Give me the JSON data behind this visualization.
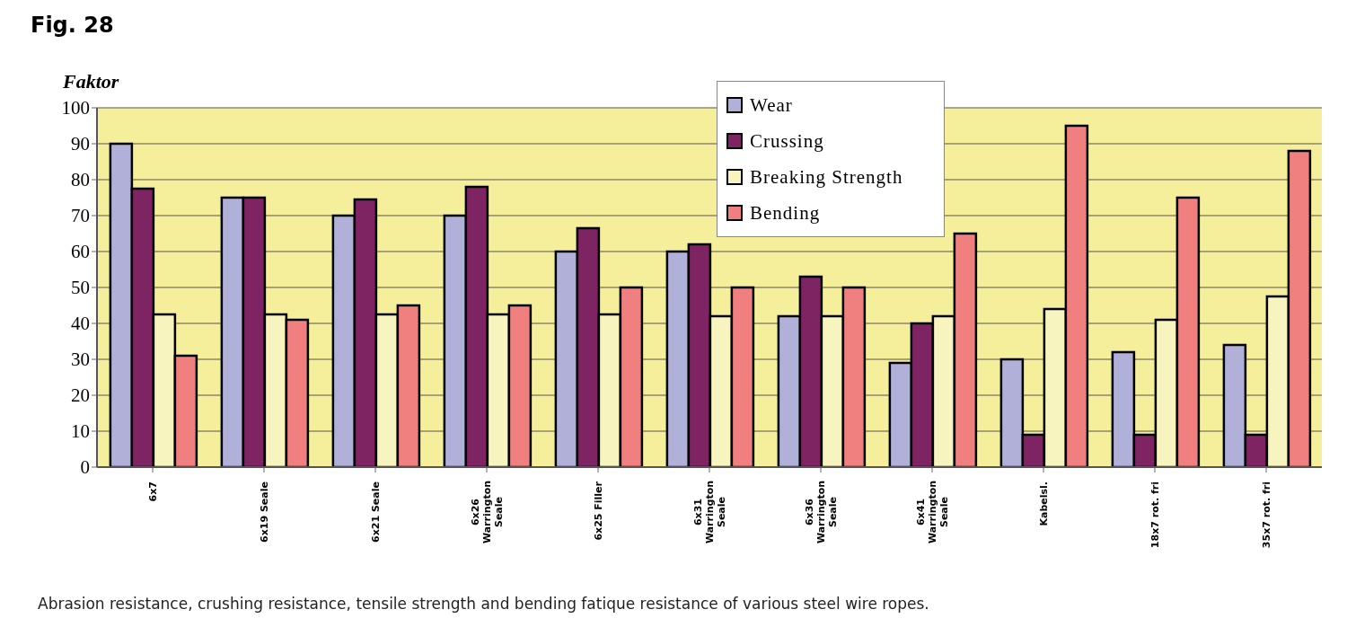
{
  "chart_data": {
    "type": "bar",
    "title": "Fig. 28",
    "ylabel": "Faktor",
    "categories": [
      "6x7",
      "6x19 Seale",
      "6x21 Seale",
      "6x26\nWarrington\nSeale",
      "6x25 Filler",
      "6x31\nWarrington\nSeale",
      "6x36\nWarrington\nSeale",
      "6x41\nWarrington\nSeale",
      "Kabelsl.",
      "18x7 rot. fri",
      "35x7 rot. fri"
    ],
    "series": [
      {
        "name": "Wear",
        "color": "#b0b0d8",
        "values": [
          90,
          75,
          70,
          70,
          60,
          60,
          42,
          29,
          30,
          32,
          34
        ]
      },
      {
        "name": "Crussing",
        "color": "#7f2463",
        "values": [
          77.5,
          75,
          74.5,
          78,
          66.5,
          62,
          53,
          40,
          9,
          9,
          9
        ]
      },
      {
        "name": "Breaking Strength",
        "color": "#f8f4c0",
        "values": [
          42.5,
          42.5,
          42.5,
          42.5,
          42.5,
          42,
          42,
          42,
          44,
          41,
          47.5
        ]
      },
      {
        "name": "Bending",
        "color": "#f08080",
        "values": [
          31,
          41,
          45,
          45,
          50,
          50,
          50,
          65,
          95,
          75,
          88
        ]
      }
    ],
    "ylim": [
      0,
      100
    ],
    "yticks": [
      0,
      10,
      20,
      30,
      40,
      50,
      60,
      70,
      80,
      90,
      100
    ],
    "grid": "y",
    "legend": "top",
    "annotations": [
      "Abrasion resistance, crushing resistance, tensile strength and bending fatique resistance of various steel wire ropes."
    ]
  }
}
